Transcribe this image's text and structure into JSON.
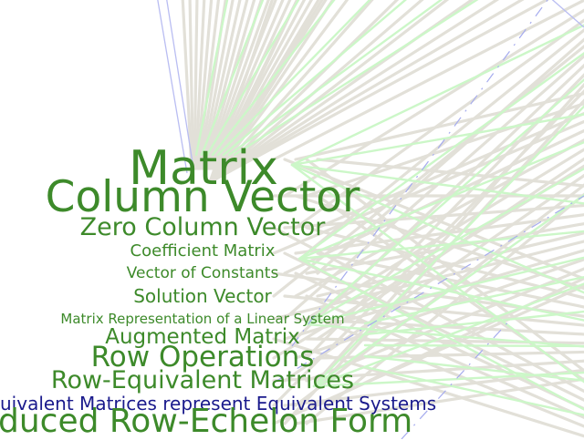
{
  "labels": {
    "matrix": "Matrix",
    "column_vector": "Column Vector",
    "zero_column_vector": "Zero Column Vector",
    "coefficient_matrix": "Coefficient Matrix",
    "vector_of_constants": "Vector of Constants",
    "solution_vector": "Solution Vector",
    "matrix_representation": "Matrix Representation of a Linear System",
    "augmented_matrix": "Augmented Matrix",
    "row_operations": "Row Operations",
    "row_equivalent_matrices": "Row-Equivalent Matrices",
    "equivalent_matrices_systems": "uivalent Matrices represent Equivalent Systems",
    "reduced_row_echelon_form": "duced Row-Echelon Form"
  },
  "colors": {
    "concept_green": "#3d8a2a",
    "theorem_blue": "#1a1a8c",
    "edge_beige": "#e2e0d8",
    "edge_green": "#ccf7c8",
    "edge_blue": "#b9bdf2"
  }
}
